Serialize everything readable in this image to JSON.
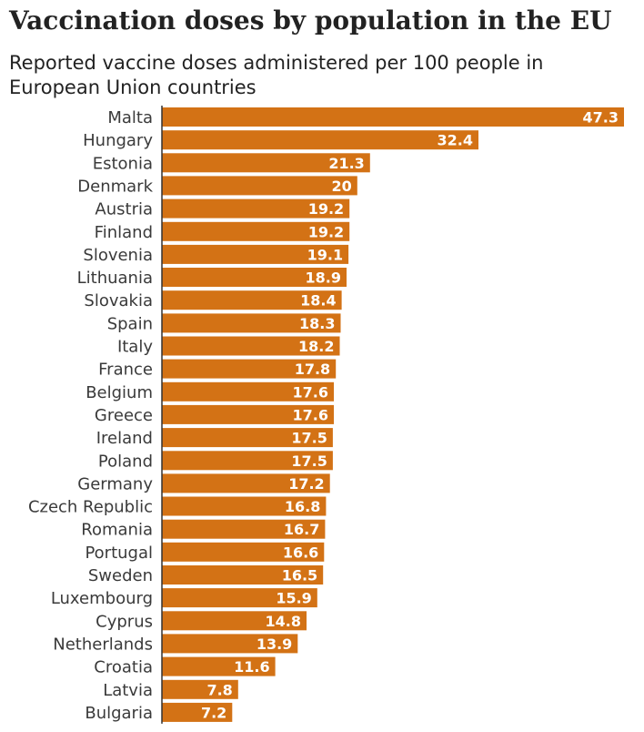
{
  "chart_data": {
    "type": "bar",
    "orientation": "horizontal",
    "title": "Vaccination doses by population in the EU",
    "subtitle": "Reported vaccine doses administered per 100 people in European Union countries",
    "categories": [
      "Malta",
      "Hungary",
      "Estonia",
      "Denmark",
      "Austria",
      "Finland",
      "Slovenia",
      "Lithuania",
      "Slovakia",
      "Spain",
      "Italy",
      "France",
      "Belgium",
      "Greece",
      "Ireland",
      "Poland",
      "Germany",
      "Czech Republic",
      "Romania",
      "Portugal",
      "Sweden",
      "Luxembourg",
      "Cyprus",
      "Netherlands",
      "Croatia",
      "Latvia",
      "Bulgaria"
    ],
    "values": [
      47.3,
      32.4,
      21.3,
      20,
      19.2,
      19.2,
      19.1,
      18.9,
      18.4,
      18.3,
      18.2,
      17.8,
      17.6,
      17.6,
      17.5,
      17.5,
      17.2,
      16.8,
      16.7,
      16.6,
      16.5,
      15.9,
      14.8,
      13.9,
      11.6,
      7.8,
      7.2
    ],
    "value_labels": [
      "47.3",
      "32.4",
      "21.3",
      "20",
      "19.2",
      "19.2",
      "19.1",
      "18.9",
      "18.4",
      "18.3",
      "18.2",
      "17.8",
      "17.6",
      "17.6",
      "17.5",
      "17.5",
      "17.2",
      "16.8",
      "16.7",
      "16.6",
      "16.5",
      "15.9",
      "14.8",
      "13.9",
      "11.6",
      "7.8",
      "7.2"
    ],
    "xlim": [
      0,
      47.3
    ],
    "grid": false,
    "legend": "none",
    "bar_color": "#d37215",
    "axis_color": "#333333"
  }
}
